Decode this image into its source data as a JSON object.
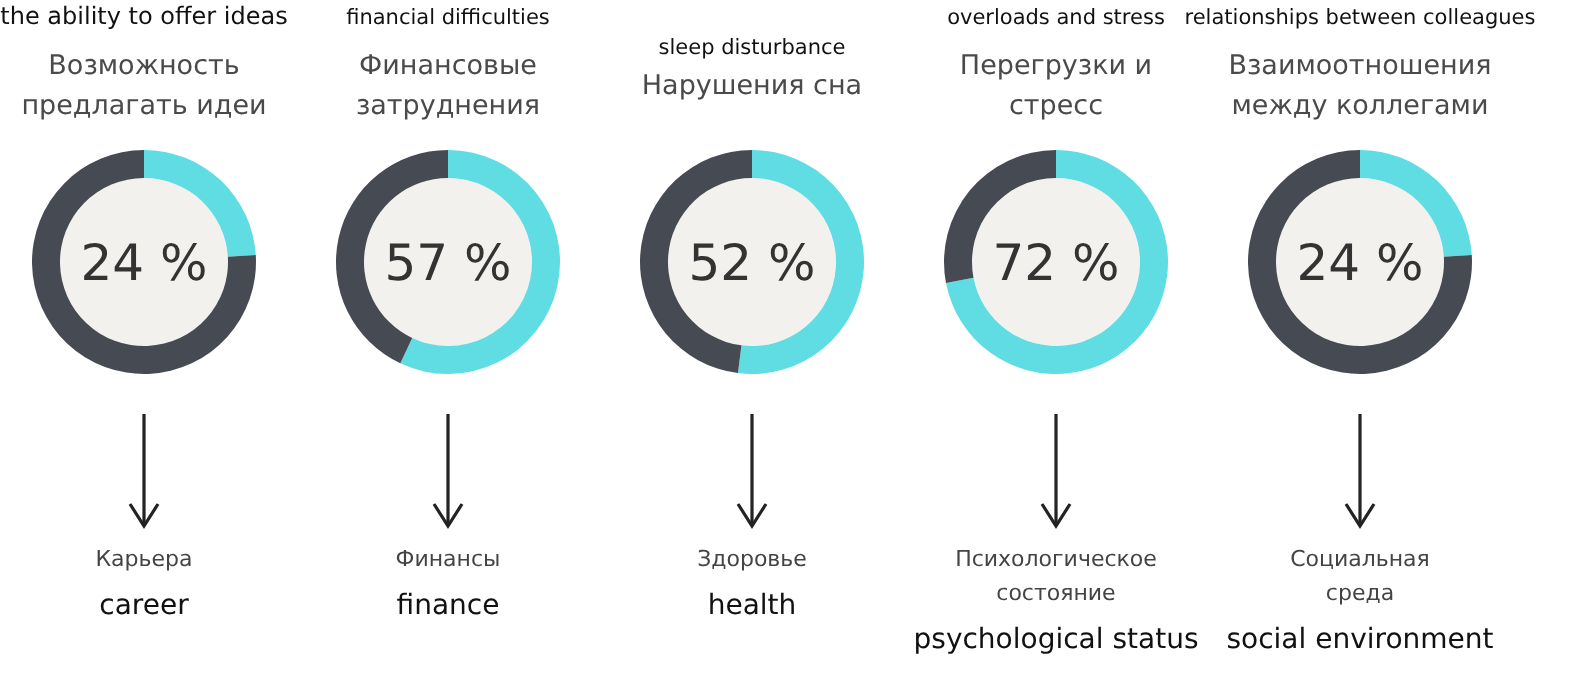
{
  "chart_data": [
    {
      "type": "donut",
      "subtitle": "the ability to offer ideas",
      "title": "Возможность\nпредлагать идеи",
      "categories": [
        null,
        null
      ],
      "values": [
        24,
        76
      ],
      "colors": [
        "#5fdde3",
        "#464b53"
      ],
      "annotations": [
        "24 %",
        "Карьера",
        "career"
      ]
    },
    {
      "type": "donut",
      "subtitle": "financial difficulties",
      "title": "Финансовые\nзатруднения",
      "categories": [
        null,
        null
      ],
      "values": [
        57,
        43
      ],
      "colors": [
        "#5fdde3",
        "#464b53"
      ],
      "annotations": [
        "57 %",
        "Финансы",
        "finance"
      ]
    },
    {
      "type": "donut",
      "subtitle": "sleep disturbance",
      "title": "Нарушения сна",
      "categories": [
        null,
        null
      ],
      "values": [
        52,
        48
      ],
      "colors": [
        "#5fdde3",
        "#464b53"
      ],
      "annotations": [
        "52 %",
        "Здоровье",
        "health"
      ]
    },
    {
      "type": "donut",
      "subtitle": "overloads and stress",
      "title": "Перегрузки и\nстресс",
      "categories": [
        null,
        null
      ],
      "values": [
        72,
        28
      ],
      "colors": [
        "#5fdde3",
        "#464b53"
      ],
      "annotations": [
        "72 %",
        "Психологическое\nсостояние",
        "psychological status"
      ]
    },
    {
      "type": "donut",
      "subtitle": "relationships between colleagues",
      "title": "Взаимоотношения\nмежду коллегами",
      "categories": [
        null,
        null
      ],
      "values": [
        24,
        76
      ],
      "colors": [
        "#5fdde3",
        "#464b53"
      ],
      "annotations": [
        "24 %",
        "Социальная\nсреда",
        "social environment"
      ]
    }
  ]
}
